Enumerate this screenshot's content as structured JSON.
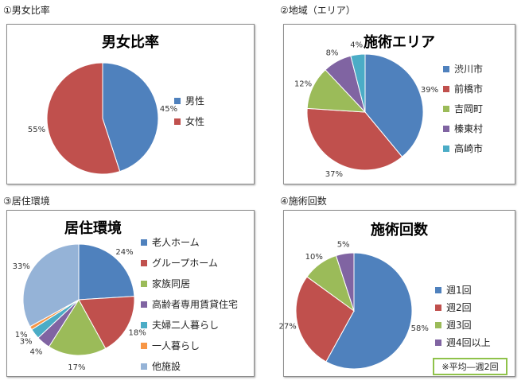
{
  "chart_data": [
    {
      "label": "①男女比率",
      "title": "男女比率",
      "type": "pie",
      "series": [
        {
          "name": "男性",
          "value": 45,
          "label": "45%",
          "color": "#4f81bd"
        },
        {
          "name": "女性",
          "value": 55,
          "label": "55%",
          "color": "#c0504d"
        }
      ]
    },
    {
      "label": "②地域（エリア）",
      "title": "施術エリア",
      "type": "pie",
      "series": [
        {
          "name": "渋川市",
          "value": 39,
          "label": "39%",
          "color": "#4f81bd"
        },
        {
          "name": "前橋市",
          "value": 37,
          "label": "37%",
          "color": "#c0504d"
        },
        {
          "name": "吉岡町",
          "value": 12,
          "label": "12%",
          "color": "#9bbb59"
        },
        {
          "name": "榛東村",
          "value": 8,
          "label": "8%",
          "color": "#8064a2"
        },
        {
          "name": "高崎市",
          "value": 4,
          "label": "4%",
          "color": "#4bacc6"
        }
      ]
    },
    {
      "label": "③居住環境",
      "title": "居住環境",
      "type": "pie",
      "series": [
        {
          "name": "老人ホーム",
          "value": 24,
          "label": "24%",
          "color": "#4f81bd"
        },
        {
          "name": "グループホーム",
          "value": 18,
          "label": "18%",
          "color": "#c0504d"
        },
        {
          "name": "家族同居",
          "value": 17,
          "label": "17%",
          "color": "#9bbb59"
        },
        {
          "name": "高齢者専用賃貸住宅",
          "value": 4,
          "label": "4%",
          "color": "#8064a2"
        },
        {
          "name": "夫婦二人暮らし",
          "value": 3,
          "label": "3%",
          "color": "#4bacc6"
        },
        {
          "name": "一人暮らし",
          "value": 1,
          "label": "1%",
          "color": "#f79646"
        },
        {
          "name": "他施設",
          "value": 33,
          "label": "33%",
          "color": "#95b3d7"
        }
      ]
    },
    {
      "label": "④施術回数",
      "title": "施術回数",
      "type": "pie",
      "note": "※平均―週2回",
      "series": [
        {
          "name": "週1回",
          "value": 58,
          "label": "58%",
          "color": "#4f81bd"
        },
        {
          "name": "週2回",
          "value": 27,
          "label": "27%",
          "color": "#c0504d"
        },
        {
          "name": "週3回",
          "value": 10,
          "label": "10%",
          "color": "#9bbb59"
        },
        {
          "name": "週4回以上",
          "value": 5,
          "label": "5%",
          "color": "#8064a2"
        }
      ]
    }
  ]
}
